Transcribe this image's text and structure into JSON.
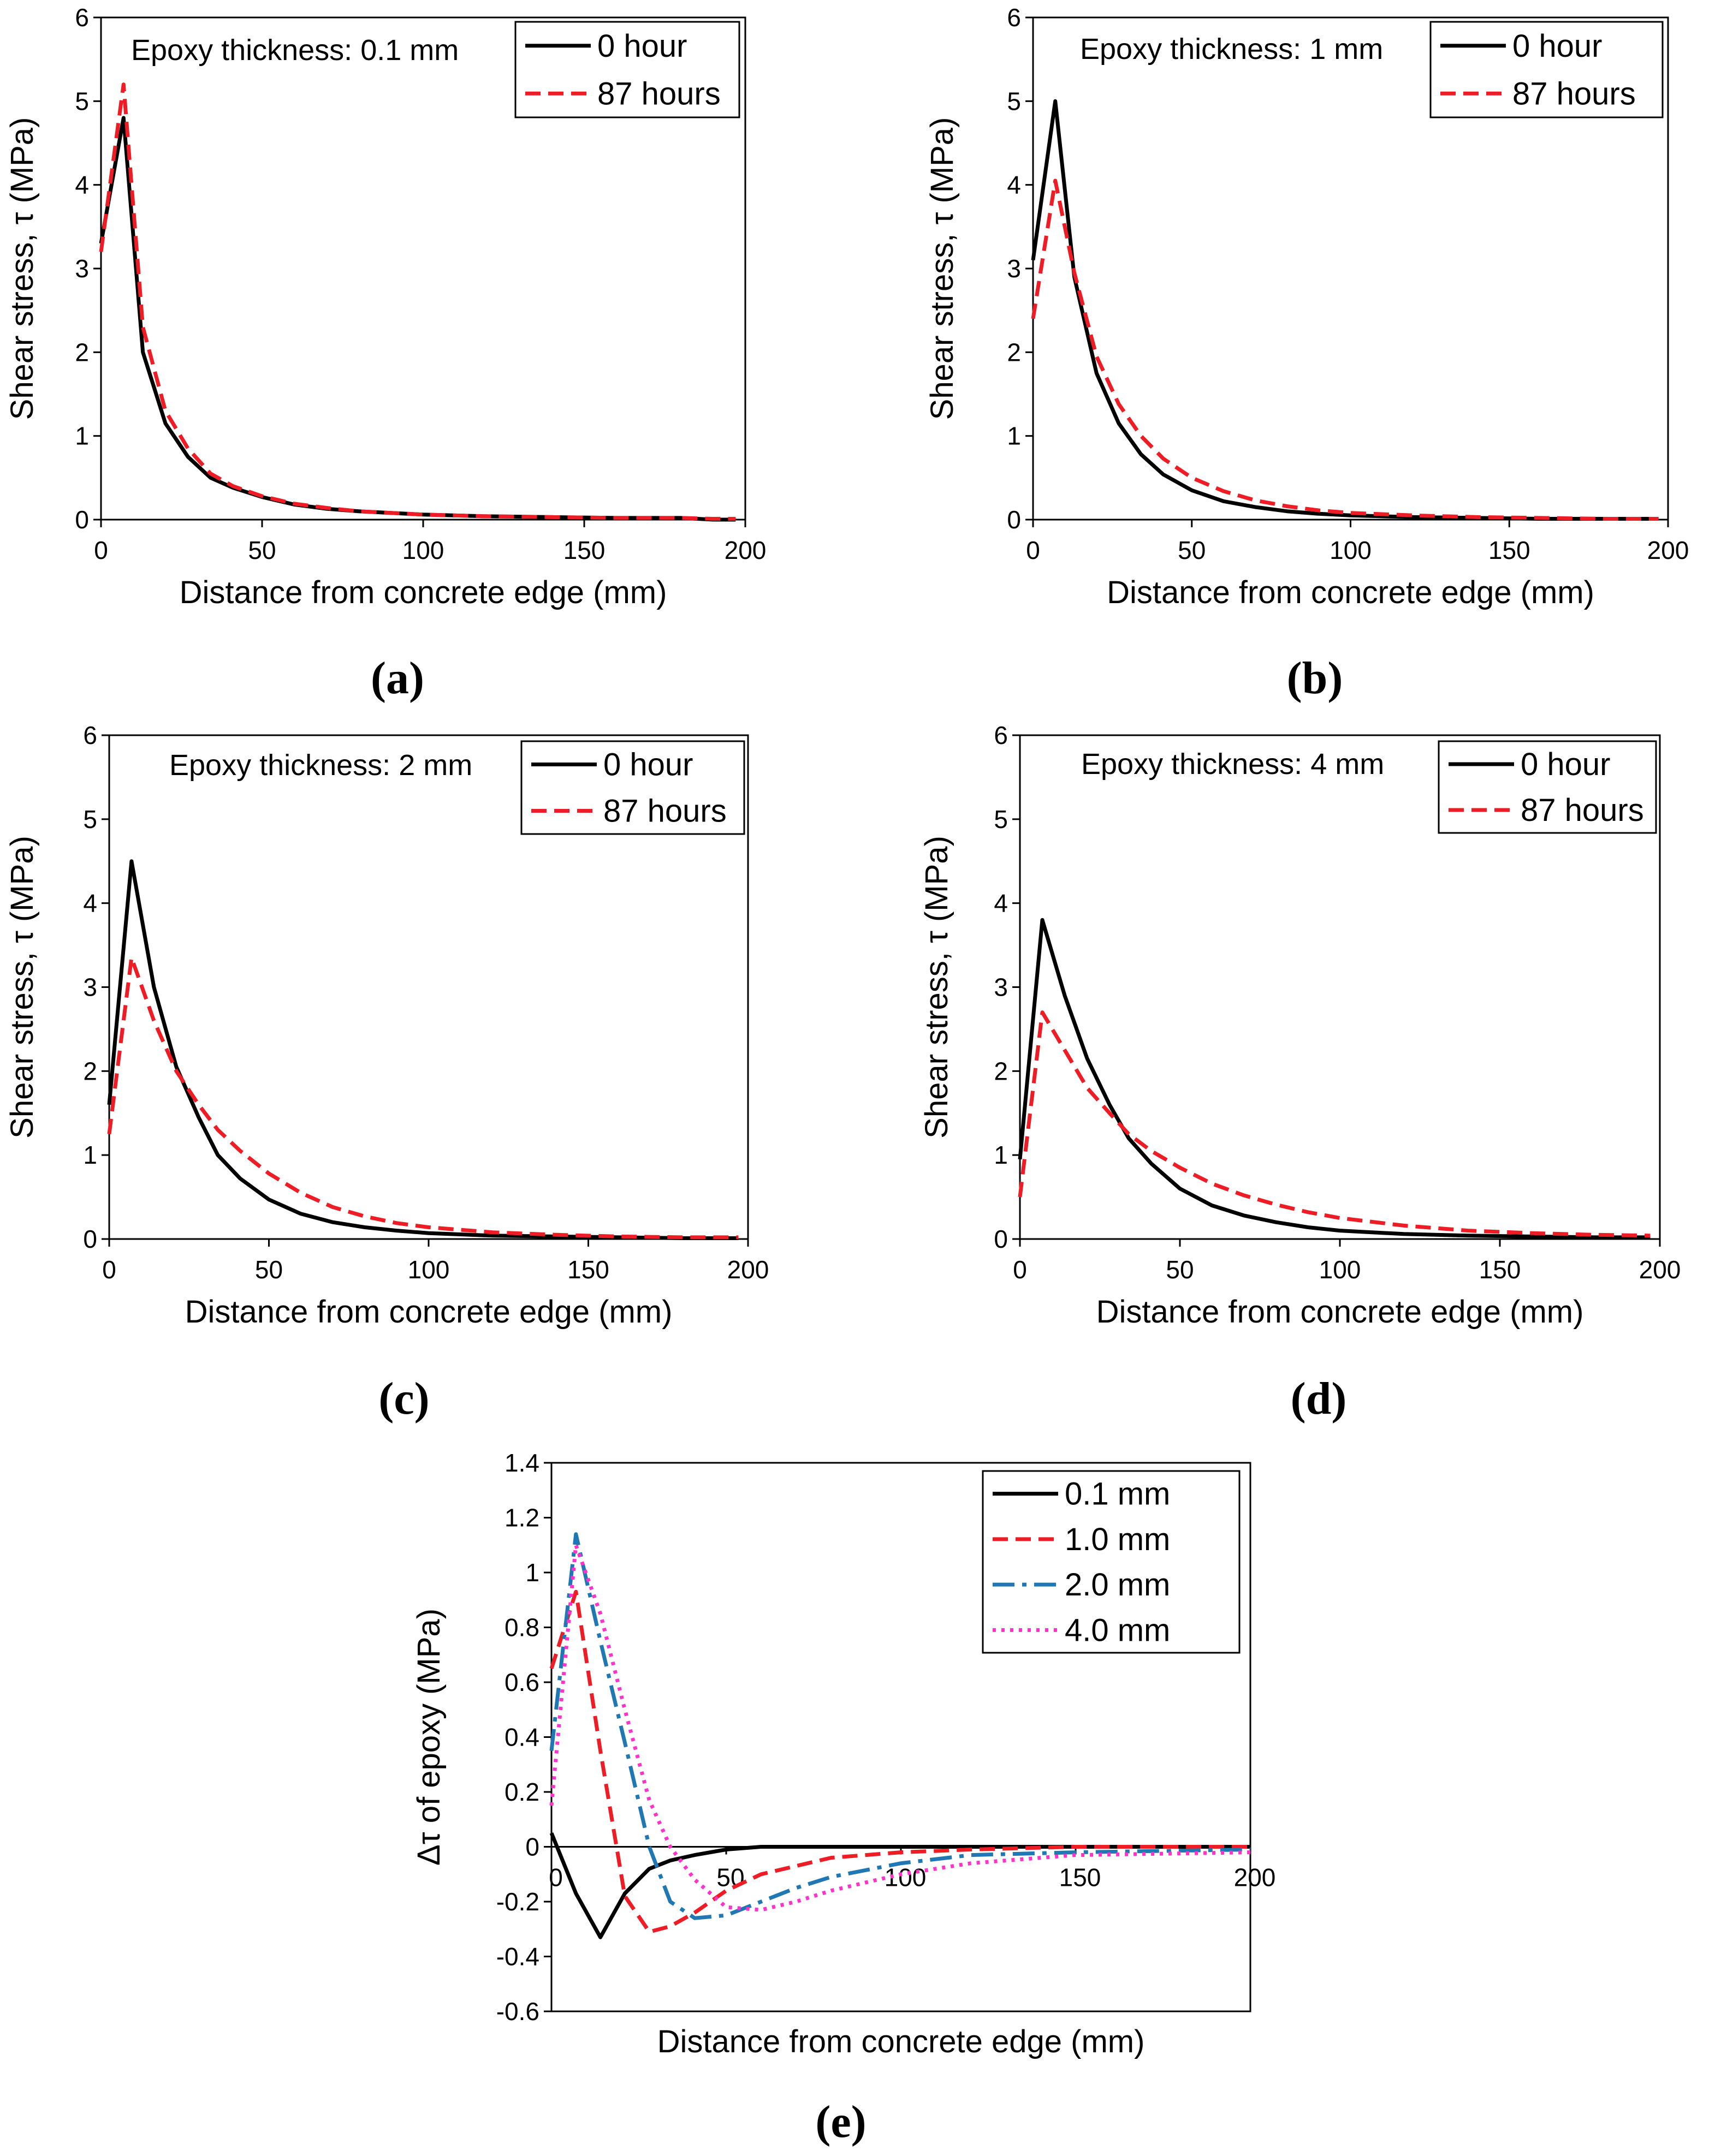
{
  "colors": {
    "black": "#000000",
    "red": "#ee1c25",
    "blue": "#1f77b4",
    "magenta": "#ff33cc"
  },
  "chart_data": [
    {
      "type": "line",
      "panel": "(a)",
      "annotation": "Epoxy thickness: 0.1 mm",
      "xlabel": "Distance from concrete edge (mm)",
      "ylabel": "Shear stress, τ (MPa)",
      "xlim": [
        0,
        200
      ],
      "ylim": [
        0,
        6
      ],
      "xticks": [
        0,
        50,
        100,
        150,
        200
      ],
      "yticks": [
        0,
        1,
        2,
        3,
        4,
        5,
        6
      ],
      "legend_position": "top-right",
      "series": [
        {
          "name": "0 hour",
          "color": "#000000",
          "dash": "solid",
          "x": [
            0,
            7,
            13,
            20,
            27,
            34,
            41,
            50,
            60,
            70,
            80,
            90,
            100,
            120,
            140,
            160,
            180,
            190,
            197
          ],
          "y": [
            3.3,
            4.8,
            2.0,
            1.15,
            0.75,
            0.5,
            0.38,
            0.27,
            0.18,
            0.13,
            0.1,
            0.08,
            0.06,
            0.04,
            0.03,
            0.02,
            0.02,
            0.0,
            0.0
          ]
        },
        {
          "name": "87 hours",
          "color": "#ee1c25",
          "dash": "dashed",
          "x": [
            0,
            7,
            13,
            20,
            27,
            34,
            41,
            50,
            60,
            70,
            80,
            90,
            100,
            120,
            140,
            160,
            180,
            190,
            197
          ],
          "y": [
            3.2,
            5.2,
            2.3,
            1.3,
            0.85,
            0.55,
            0.4,
            0.28,
            0.19,
            0.14,
            0.1,
            0.08,
            0.06,
            0.04,
            0.03,
            0.02,
            0.02,
            0.01,
            0.01
          ]
        }
      ]
    },
    {
      "type": "line",
      "panel": "(b)",
      "annotation": "Epoxy thickness: 1 mm",
      "xlabel": "Distance from concrete edge (mm)",
      "ylabel": "Shear stress, τ (MPa)",
      "xlim": [
        0,
        200
      ],
      "ylim": [
        0,
        6
      ],
      "xticks": [
        0,
        50,
        100,
        150,
        200
      ],
      "yticks": [
        0,
        1,
        2,
        3,
        4,
        5,
        6
      ],
      "legend_position": "top-right",
      "series": [
        {
          "name": "0 hour",
          "color": "#000000",
          "dash": "solid",
          "x": [
            0,
            7,
            13,
            20,
            27,
            34,
            41,
            50,
            60,
            70,
            80,
            90,
            100,
            120,
            140,
            160,
            180,
            197
          ],
          "y": [
            3.1,
            5.0,
            2.9,
            1.75,
            1.15,
            0.78,
            0.54,
            0.35,
            0.22,
            0.15,
            0.1,
            0.07,
            0.05,
            0.03,
            0.02,
            0.01,
            0.01,
            0.01
          ]
        },
        {
          "name": "87 hours",
          "color": "#ee1c25",
          "dash": "dashed",
          "x": [
            0,
            7,
            13,
            20,
            27,
            34,
            41,
            50,
            60,
            70,
            80,
            90,
            100,
            120,
            140,
            160,
            180,
            197
          ],
          "y": [
            2.4,
            4.05,
            2.95,
            1.95,
            1.38,
            1.0,
            0.73,
            0.5,
            0.34,
            0.23,
            0.16,
            0.11,
            0.08,
            0.05,
            0.03,
            0.02,
            0.01,
            0.01
          ]
        }
      ]
    },
    {
      "type": "line",
      "panel": "(c)",
      "annotation": "Epoxy thickness: 2 mm",
      "xlabel": "Distance from concrete edge (mm)",
      "ylabel": "Shear stress, τ (MPa)",
      "xlim": [
        0,
        200
      ],
      "ylim": [
        0,
        6
      ],
      "xticks": [
        0,
        50,
        100,
        150,
        200
      ],
      "yticks": [
        0,
        1,
        2,
        3,
        4,
        5,
        6
      ],
      "legend_position": "top-right",
      "series": [
        {
          "name": "0 hour",
          "color": "#000000",
          "dash": "solid",
          "x": [
            0,
            7,
            14,
            21,
            28,
            34,
            41,
            50,
            60,
            70,
            80,
            90,
            100,
            120,
            140,
            160,
            180,
            197
          ],
          "y": [
            1.6,
            4.5,
            3.0,
            2.05,
            1.45,
            1.0,
            0.72,
            0.47,
            0.3,
            0.2,
            0.14,
            0.1,
            0.07,
            0.04,
            0.03,
            0.02,
            0.01,
            0.01
          ]
        },
        {
          "name": "87 hours",
          "color": "#ee1c25",
          "dash": "dashed",
          "x": [
            0,
            7,
            14,
            21,
            28,
            34,
            41,
            50,
            60,
            70,
            80,
            90,
            100,
            120,
            140,
            160,
            180,
            197
          ],
          "y": [
            1.25,
            3.35,
            2.6,
            2.0,
            1.6,
            1.3,
            1.05,
            0.78,
            0.55,
            0.38,
            0.27,
            0.19,
            0.14,
            0.08,
            0.05,
            0.03,
            0.02,
            0.02
          ]
        }
      ]
    },
    {
      "type": "line",
      "panel": "(d)",
      "annotation": "Epoxy thickness: 4 mm",
      "xlabel": "Distance from concrete edge (mm)",
      "ylabel": "Shear stress, τ (MPa)",
      "xlim": [
        0,
        200
      ],
      "ylim": [
        0,
        6
      ],
      "xticks": [
        0,
        50,
        100,
        150,
        200
      ],
      "yticks": [
        0,
        1,
        2,
        3,
        4,
        5,
        6
      ],
      "legend_position": "top-right",
      "series": [
        {
          "name": "0 hour",
          "color": "#000000",
          "dash": "solid",
          "x": [
            0,
            7,
            14,
            21,
            28,
            34,
            41,
            50,
            60,
            70,
            80,
            90,
            100,
            120,
            140,
            160,
            180,
            197
          ],
          "y": [
            0.95,
            3.8,
            2.9,
            2.15,
            1.6,
            1.2,
            0.9,
            0.6,
            0.4,
            0.28,
            0.2,
            0.14,
            0.1,
            0.06,
            0.04,
            0.03,
            0.02,
            0.02
          ]
        },
        {
          "name": "87 hours",
          "color": "#ee1c25",
          "dash": "dashed",
          "x": [
            0,
            7,
            14,
            21,
            28,
            34,
            41,
            50,
            60,
            70,
            80,
            90,
            100,
            120,
            140,
            160,
            180,
            197
          ],
          "y": [
            0.5,
            2.7,
            2.25,
            1.8,
            1.5,
            1.25,
            1.05,
            0.85,
            0.66,
            0.52,
            0.41,
            0.32,
            0.25,
            0.16,
            0.1,
            0.07,
            0.05,
            0.04
          ]
        }
      ]
    },
    {
      "type": "line",
      "panel": "(e)",
      "xlabel": "Distance from concrete edge (mm)",
      "ylabel": "Δτ of epoxy (MPa)",
      "xlim": [
        0,
        200
      ],
      "ylim": [
        -0.6,
        1.4
      ],
      "xticks": [
        0,
        50,
        100,
        150,
        200
      ],
      "yticks": [
        -0.6,
        -0.4,
        -0.2,
        0,
        0.2,
        0.4,
        0.6,
        0.8,
        1,
        1.2,
        1.4
      ],
      "legend_position": "top-right",
      "series": [
        {
          "name": "0.1 mm",
          "color": "#000000",
          "dash": "solid",
          "x": [
            0,
            7,
            14,
            21,
            28,
            34,
            41,
            50,
            60,
            80,
            100,
            150,
            200
          ],
          "y": [
            0.05,
            -0.17,
            -0.33,
            -0.17,
            -0.08,
            -0.05,
            -0.03,
            -0.01,
            0.0,
            0.0,
            0.0,
            0.0,
            0.0
          ]
        },
        {
          "name": "1.0 mm",
          "color": "#ee1c25",
          "dash": "dashed",
          "x": [
            0,
            7,
            14,
            21,
            28,
            34,
            41,
            50,
            60,
            70,
            80,
            100,
            120,
            150,
            200
          ],
          "y": [
            0.65,
            0.93,
            0.35,
            -0.18,
            -0.31,
            -0.29,
            -0.24,
            -0.16,
            -0.1,
            -0.07,
            -0.04,
            -0.02,
            -0.01,
            0.0,
            0.0
          ]
        },
        {
          "name": "2.0 mm",
          "color": "#1f77b4",
          "dash": "dashdot",
          "x": [
            0,
            7,
            14,
            21,
            28,
            34,
            41,
            50,
            60,
            70,
            80,
            100,
            120,
            150,
            200
          ],
          "y": [
            0.35,
            1.14,
            0.75,
            0.38,
            0.0,
            -0.2,
            -0.26,
            -0.25,
            -0.2,
            -0.15,
            -0.11,
            -0.06,
            -0.03,
            -0.02,
            -0.01
          ]
        },
        {
          "name": "4.0 mm",
          "color": "#ff33cc",
          "dash": "dotted",
          "x": [
            0,
            7,
            14,
            21,
            28,
            34,
            41,
            50,
            60,
            70,
            80,
            100,
            120,
            150,
            200
          ],
          "y": [
            0.15,
            1.1,
            0.85,
            0.5,
            0.17,
            0.0,
            -0.12,
            -0.22,
            -0.23,
            -0.2,
            -0.16,
            -0.1,
            -0.06,
            -0.03,
            -0.02
          ]
        }
      ]
    }
  ]
}
